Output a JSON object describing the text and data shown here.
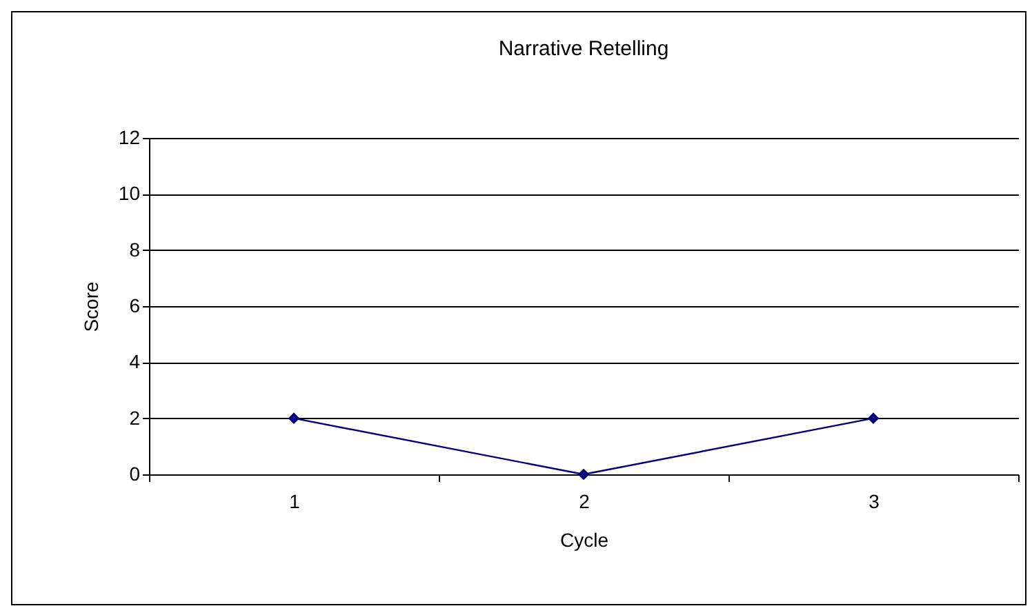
{
  "chart_data": {
    "type": "line",
    "title": "Narrative Retelling",
    "xlabel": "Cycle",
    "ylabel": "Score",
    "categories": [
      "1",
      "2",
      "3"
    ],
    "series": [
      {
        "color": "#000080",
        "values": [
          2,
          0,
          2
        ]
      }
    ],
    "ylim": [
      0,
      12
    ],
    "yticks": [
      0,
      2,
      4,
      6,
      8,
      10,
      12
    ],
    "grid": "y",
    "legend": false,
    "marker": "diamond",
    "line_style": "solid"
  }
}
